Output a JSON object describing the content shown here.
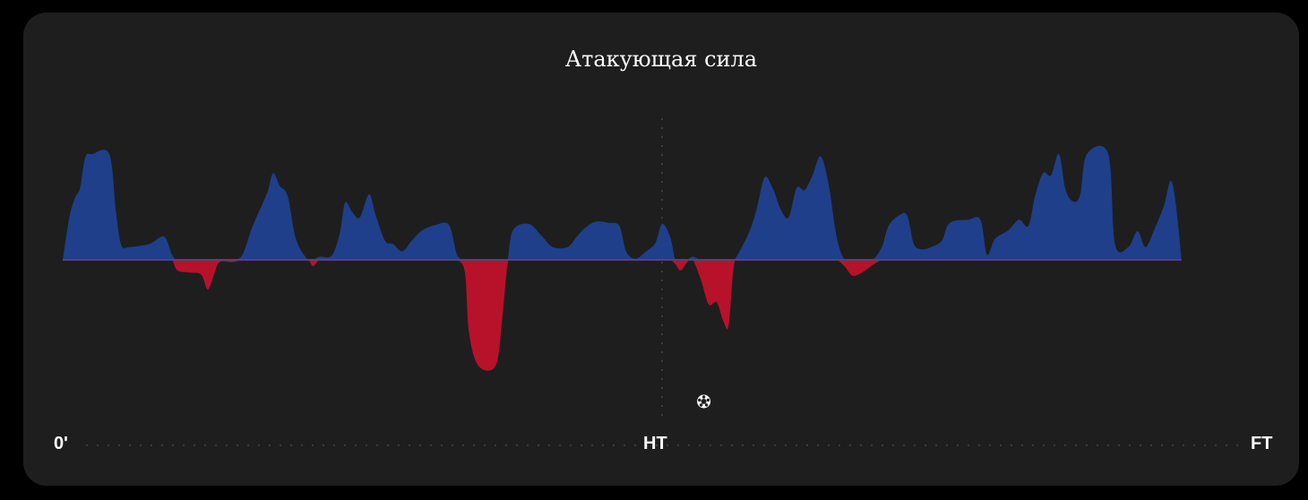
{
  "chart_data": {
    "type": "area",
    "title": "Атакующая сила",
    "x_labels": {
      "start": "0'",
      "half": "HT",
      "end": "FT"
    },
    "xlim": [
      0,
      90
    ],
    "ylim": [
      -1,
      1
    ],
    "colors": {
      "positive": "#1f3f8a",
      "negative": "#b8122b",
      "baseline": "#5a3f78",
      "background": "#1e1e1e"
    },
    "events": [
      {
        "minute": 48,
        "icon": "ball-icon"
      }
    ],
    "points": [
      [
        0,
        0
      ],
      [
        0.5,
        0.4
      ],
      [
        0.9,
        0.58
      ],
      [
        1.3,
        0.68
      ],
      [
        1.7,
        0.97
      ],
      [
        2.2,
        1.0
      ],
      [
        3.5,
        1.0
      ],
      [
        4.0,
        0.45
      ],
      [
        4.4,
        0.14
      ],
      [
        5.0,
        0.12
      ],
      [
        6.5,
        0.15
      ],
      [
        7.6,
        0.22
      ],
      [
        8.2,
        0.05
      ],
      [
        8.6,
        -0.1
      ],
      [
        9.5,
        -0.12
      ],
      [
        10.4,
        -0.14
      ],
      [
        10.9,
        -0.28
      ],
      [
        11.4,
        -0.12
      ],
      [
        11.8,
        -0.02
      ],
      [
        12.8,
        -0.02
      ],
      [
        13.5,
        0.05
      ],
      [
        14.2,
        0.3
      ],
      [
        15.0,
        0.53
      ],
      [
        15.4,
        0.65
      ],
      [
        15.8,
        0.82
      ],
      [
        16.3,
        0.7
      ],
      [
        16.9,
        0.6
      ],
      [
        17.5,
        0.2
      ],
      [
        18.4,
        0.0
      ],
      [
        18.8,
        -0.06
      ],
      [
        19.3,
        0.03
      ],
      [
        20.2,
        0.04
      ],
      [
        20.8,
        0.25
      ],
      [
        21.2,
        0.54
      ],
      [
        21.7,
        0.46
      ],
      [
        22.3,
        0.4
      ],
      [
        23.0,
        0.62
      ],
      [
        23.5,
        0.42
      ],
      [
        24.2,
        0.18
      ],
      [
        24.8,
        0.15
      ],
      [
        25.5,
        0.08
      ],
      [
        26.2,
        0.18
      ],
      [
        27.0,
        0.28
      ],
      [
        28.0,
        0.33
      ],
      [
        29.0,
        0.33
      ],
      [
        29.6,
        0.05
      ],
      [
        30.2,
        -0.12
      ],
      [
        30.5,
        -0.68
      ],
      [
        31.2,
        -1.0
      ],
      [
        32.5,
        -1.0
      ],
      [
        33.0,
        -0.55
      ],
      [
        33.4,
        -0.05
      ],
      [
        33.8,
        0.28
      ],
      [
        35.0,
        0.34
      ],
      [
        36.0,
        0.22
      ],
      [
        36.8,
        0.12
      ],
      [
        37.9,
        0.12
      ],
      [
        38.6,
        0.22
      ],
      [
        39.2,
        0.3
      ],
      [
        40.0,
        0.36
      ],
      [
        41.0,
        0.35
      ],
      [
        41.8,
        0.32
      ],
      [
        42.3,
        0.08
      ],
      [
        43.0,
        0.01
      ],
      [
        43.8,
        0.08
      ],
      [
        44.5,
        0.16
      ],
      [
        45.0,
        0.34
      ],
      [
        45.6,
        0.22
      ],
      [
        46.0,
        -0.04
      ],
      [
        46.4,
        -0.1
      ],
      [
        46.9,
        -0.02
      ],
      [
        47.3,
        0.03
      ],
      [
        47.9,
        -0.18
      ],
      [
        48.5,
        -0.42
      ],
      [
        49.1,
        -0.4
      ],
      [
        49.6,
        -0.58
      ],
      [
        50.0,
        -0.62
      ],
      [
        50.4,
        -0.05
      ],
      [
        50.9,
        0.1
      ],
      [
        51.6,
        0.28
      ],
      [
        52.1,
        0.48
      ],
      [
        52.7,
        0.78
      ],
      [
        53.3,
        0.68
      ],
      [
        53.9,
        0.48
      ],
      [
        54.5,
        0.4
      ],
      [
        55.1,
        0.68
      ],
      [
        55.7,
        0.66
      ],
      [
        56.3,
        0.8
      ],
      [
        56.9,
        0.98
      ],
      [
        57.5,
        0.72
      ],
      [
        58.1,
        0.22
      ],
      [
        58.7,
        -0.06
      ],
      [
        59.3,
        -0.15
      ],
      [
        60.0,
        -0.12
      ],
      [
        60.8,
        -0.05
      ],
      [
        61.5,
        0.12
      ],
      [
        62.0,
        0.32
      ],
      [
        62.8,
        0.42
      ],
      [
        63.4,
        0.42
      ],
      [
        63.9,
        0.15
      ],
      [
        64.5,
        0.1
      ],
      [
        65.2,
        0.12
      ],
      [
        66.0,
        0.18
      ],
      [
        66.6,
        0.35
      ],
      [
        68.0,
        0.38
      ],
      [
        68.9,
        0.38
      ],
      [
        69.4,
        0.05
      ],
      [
        70.0,
        0.2
      ],
      [
        71.0,
        0.28
      ],
      [
        71.8,
        0.38
      ],
      [
        72.5,
        0.32
      ],
      [
        73.0,
        0.6
      ],
      [
        73.6,
        0.82
      ],
      [
        74.2,
        0.8
      ],
      [
        74.8,
        1.0
      ],
      [
        75.3,
        0.66
      ],
      [
        75.9,
        0.55
      ],
      [
        76.4,
        0.62
      ],
      [
        76.9,
        1.0
      ],
      [
        78.5,
        1.0
      ],
      [
        79.0,
        0.15
      ],
      [
        80.0,
        0.12
      ],
      [
        80.7,
        0.27
      ],
      [
        81.3,
        0.12
      ],
      [
        82.0,
        0.3
      ],
      [
        82.7,
        0.52
      ],
      [
        83.2,
        0.75
      ],
      [
        83.6,
        0.5
      ],
      [
        84.0,
        0.0
      ]
    ]
  }
}
